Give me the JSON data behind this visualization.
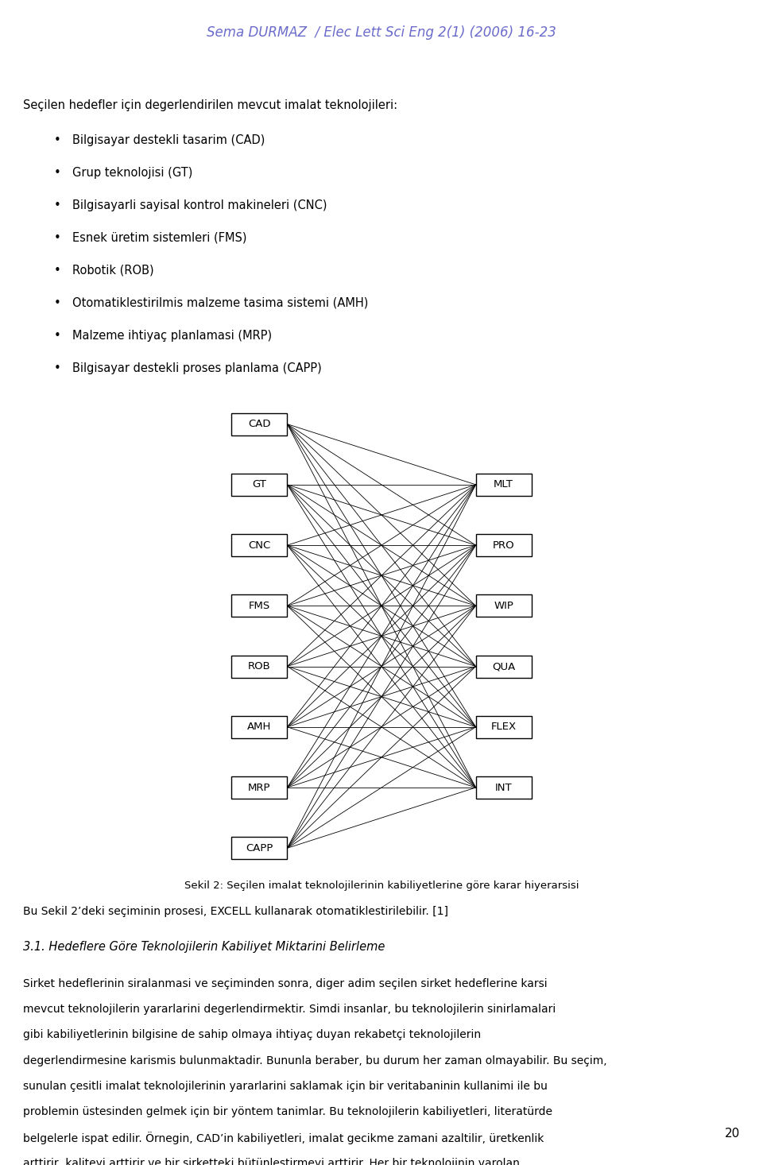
{
  "header": "Sema DURMAZ  / Elec Lett Sci Eng 2(1) (2006) 16-23",
  "header_color": "#6b6bcc",
  "background_color": "#ffffff",
  "intro_text": "Seçilen hedefler için degerlendirilen mevcut imalat teknolojileri:",
  "bullet_items": [
    "Bilgisayar destekli tasarim (CAD)",
    "Grup teknolojisi (GT)",
    "Bilgisayarli sayisal kontrol makineleri (CNC)",
    "Esnek üretim sistemleri (FMS)",
    "Robotik (ROB)",
    "Otomatiklestirilmis malzeme tasima sistemi (AMH)",
    "Malzeme ihtiyaç planlamasi (MRP)",
    "Bilgisayar destekli proses planlama (CAPP)"
  ],
  "left_nodes": [
    "CAD",
    "GT",
    "CNC",
    "FMS",
    "ROB",
    "AMH",
    "MRP",
    "CAPP"
  ],
  "right_nodes": [
    "MLT",
    "PRO",
    "WIP",
    "QUA",
    "FLEX",
    "INT"
  ],
  "caption_bold": "Sekil 2",
  "caption_rest": ": Seçilen imalat teknolojilerinin kabiliyetlerine göre karar hiyerarsisi",
  "paragraph1": "Bu Sekil 2’deki seçiminin prosesi, EXCELL kullanarak otomatiklestirilebilir. [1]",
  "section_title": "3.1. Hedeflere Göre Teknolojilerin Kabiliyet Miktarini Belirleme",
  "paragraph2": "Sirket hedeflerinin siralanmasi ve seçiminden sonra, diger adim seçilen sirket hedeflerine karsi mevcut teknolojilerin yararlarini degerlendirmektir. Simdi insanlar, bu teknolojilerin sinirlamalari gibi kabiliyetlerinin bilgisine de sahip olmaya ihtiyaç duyan rekabetçi teknolojilerin degerlendirmesine karismis bulunmaktadir. Bununla beraber, bu durum her zaman olmayabilir. Bu seçim, sunulan çesitli imalat teknolojilerinin yararlarini saklamak için bir veritabaninin kullanimi ile bu problemin üstesinden gelmek için bir yöntem tanimlar. Bu teknolojilerin kabiliyetleri, literatürde belgelerle ispat edilir. Örnegin, CAD’in kabiliyetleri, imalat gecikme zamani azaltilir, üretkenlik arttirir, kaliteyi arttirir ve bir sirketteki bütünlestirmeyi arttirir. Her bir teknolojinin varolan kabiliyetleri tanimlandiktan sonra AHP teknigini kullanarak uygun agirliklara bu kabiliyetleri",
  "page_number": "20",
  "font_size_header": 12,
  "font_size_intro": 10.5,
  "font_size_bullet": 10.5,
  "font_size_node": 9.5,
  "font_size_caption": 9.5,
  "font_size_paragraph": 10,
  "font_size_section": 10.5
}
